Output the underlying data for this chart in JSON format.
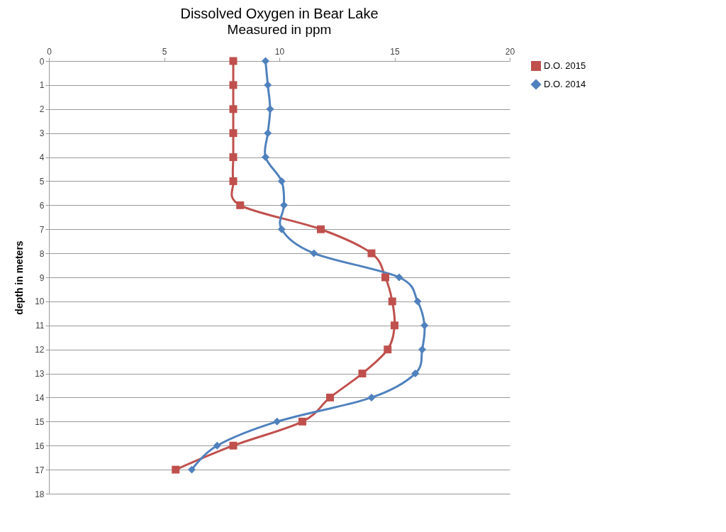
{
  "chart_data": {
    "type": "line",
    "title": "Dissolved Oxygen in Bear Lake",
    "subtitle": "Measured in ppm",
    "ylabel": "depth in meters",
    "xlim": [
      0,
      20
    ],
    "xticks": [
      0,
      5,
      10,
      15,
      20
    ],
    "ylim": [
      18,
      0
    ],
    "yticks": [
      0,
      1,
      2,
      3,
      4,
      5,
      6,
      7,
      8,
      9,
      10,
      11,
      12,
      13,
      14,
      15,
      16,
      17,
      18
    ],
    "grid": "y",
    "legend": "right",
    "series": [
      {
        "name": "D.O. 2015",
        "color": "#c0504d",
        "marker": "square",
        "x": [
          8.0,
          8.0,
          8.0,
          8.0,
          8.0,
          8.0,
          8.3,
          11.8,
          14.0,
          14.6,
          14.9,
          15.0,
          14.7,
          13.6,
          12.2,
          11.0,
          8.0,
          5.5
        ],
        "values": [
          0,
          1,
          2,
          3,
          4,
          5,
          6,
          7,
          8,
          9,
          10,
          11,
          12,
          13,
          14,
          15,
          16,
          17
        ]
      },
      {
        "name": "D.O. 2014",
        "color": "#4f81bd",
        "marker": "diamond",
        "x": [
          9.4,
          9.5,
          9.6,
          9.5,
          9.4,
          10.1,
          10.2,
          10.1,
          11.5,
          15.2,
          16.0,
          16.3,
          16.2,
          15.9,
          14.0,
          9.9,
          7.3,
          6.2
        ],
        "values": [
          0,
          1,
          2,
          3,
          4,
          5,
          6,
          7,
          8,
          9,
          10,
          11,
          12,
          13,
          14,
          15,
          16,
          17
        ]
      }
    ]
  }
}
